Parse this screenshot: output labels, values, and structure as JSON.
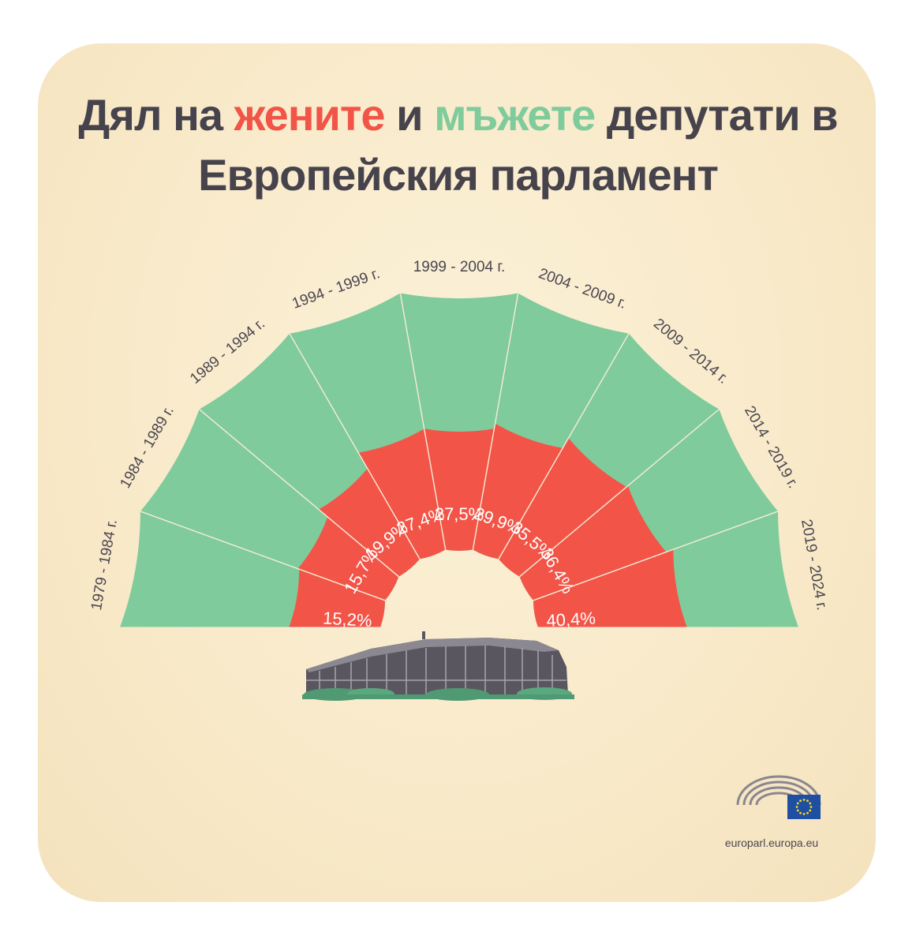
{
  "title": {
    "part1": "Дял на ",
    "women_word": "жените",
    "part2": " и ",
    "men_word": "мъжете",
    "part3": " депутати в",
    "line2": "Европейския парламент"
  },
  "colors": {
    "women": "#f25548",
    "men": "#7fcb9b",
    "background": "#f8e9c8",
    "text": "#47434c"
  },
  "chart_data": {
    "type": "pie",
    "subtype": "semicircle-radial",
    "categories": [
      "1979 - 1984 г.",
      "1984 - 1989 г.",
      "1989 - 1994 г.",
      "1994 - 1999 г.",
      "1999 - 2004 г.",
      "2004 - 2009 г.",
      "2009 - 2014 г.",
      "2014 - 2019 г.",
      "2019 - 2024 г."
    ],
    "series": [
      {
        "name": "жените",
        "values": [
          15.2,
          15.7,
          19.9,
          27.4,
          27.5,
          29.9,
          35.5,
          36.4,
          40.4
        ]
      },
      {
        "name": "мъжете",
        "values": [
          84.8,
          84.3,
          80.1,
          72.6,
          72.5,
          70.1,
          64.5,
          63.6,
          59.6
        ]
      }
    ],
    "labels": [
      "15,2%",
      "15,7%",
      "19,9%",
      "27,4%",
      "27,5%",
      "29,9%",
      "35,5%",
      "36,4%",
      "40,4%"
    ]
  },
  "footer": {
    "url": "europarl.europa.eu"
  },
  "icons": {
    "logo": "european-parliament-hemicycle-logo",
    "flag": "eu-flag-icon",
    "building": "parliament-building-illustration"
  }
}
